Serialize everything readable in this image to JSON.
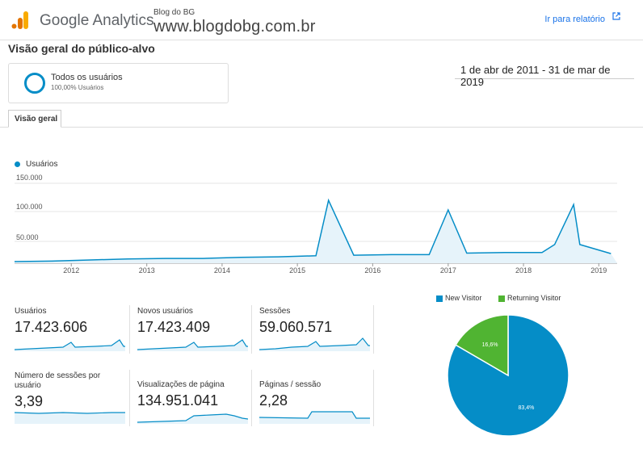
{
  "header": {
    "product_name": "Google Analytics",
    "account_small": "Blog do BG",
    "account_big": "www.blogdobg.com.br",
    "report_link": "Ir para relatório",
    "icons": [
      "analytics-logo-icon",
      "external-link-icon"
    ]
  },
  "page": {
    "title": "Visão geral do público-alvo",
    "date_range": "1 de abr de 2011 - 31 de mar de 2019"
  },
  "segment": {
    "name": "Todos os usuários",
    "percent": "100,00% Usuários"
  },
  "tab": {
    "label": "Visão geral"
  },
  "colors": {
    "accent": "#058dc7",
    "returning": "#50b432",
    "link": "#1a73e8"
  },
  "chart_data": [
    {
      "type": "line",
      "series": [
        {
          "name": "Usuários"
        }
      ],
      "x": [
        "2011-04",
        "2011-10",
        "2012-04",
        "2012-10",
        "2013-04",
        "2013-10",
        "2014-04",
        "2014-10",
        "2015-04",
        "2015-06",
        "2015-10",
        "2016-04",
        "2016-10",
        "2017-01",
        "2017-04",
        "2017-10",
        "2018-04",
        "2018-06",
        "2018-09",
        "2018-10",
        "2019-03"
      ],
      "y": [
        3000,
        4000,
        6000,
        8000,
        9000,
        9000,
        11000,
        12000,
        14000,
        118000,
        15000,
        16000,
        16000,
        100000,
        19000,
        20000,
        20000,
        35000,
        110000,
        35000,
        18000
      ],
      "yticks": [
        "150.000",
        "100.000",
        "50.000"
      ],
      "ylim": [
        0,
        150000
      ],
      "xticks": [
        "2012",
        "2013",
        "2014",
        "2015",
        "2016",
        "2017",
        "2018",
        "2019"
      ]
    },
    {
      "type": "pie",
      "series": [
        {
          "name": "New Visitor",
          "value": 83.4,
          "label": "83,4%"
        },
        {
          "name": "Returning Visitor",
          "value": 16.6,
          "label": "16,6%"
        }
      ]
    }
  ],
  "metrics": [
    {
      "label": "Usuários",
      "value": "17.423.606"
    },
    {
      "label": "Novos usuários",
      "value": "17.423.409"
    },
    {
      "label": "Sessões",
      "value": "59.060.571"
    },
    {
      "label": "Número de sessões por usuário",
      "value": "3,39"
    },
    {
      "label": "Visualizações de página",
      "value": "134.951.041"
    },
    {
      "label": "Páginas / sessão",
      "value": "2,28"
    }
  ]
}
